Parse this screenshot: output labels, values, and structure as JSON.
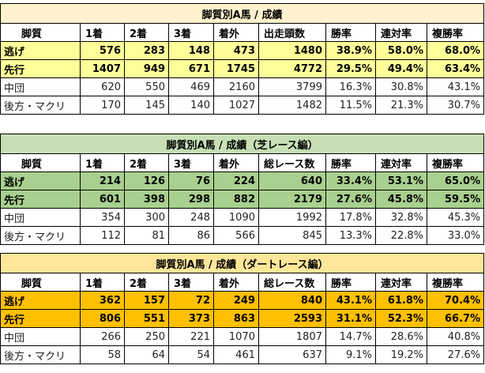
{
  "sections": [
    {
      "title": "脚質別A馬 / 成績",
      "title_bg": "#fff2cc",
      "hl_bg": "#ffff99",
      "headers": [
        "脚質",
        "1着",
        "2着",
        "3着",
        "着外",
        "出走頭数",
        "勝率",
        "連対率",
        "複勝率"
      ],
      "rows": [
        [
          "逃げ",
          "576",
          "283",
          "148",
          "473",
          "1480",
          "38.9%",
          "58.0%",
          "68.0%"
        ],
        [
          "先行",
          "1407",
          "949",
          "671",
          "1745",
          "4772",
          "29.5%",
          "49.4%",
          "63.4%"
        ],
        [
          "中団",
          "620",
          "550",
          "469",
          "2160",
          "3799",
          "16.3%",
          "30.8%",
          "43.1%"
        ],
        [
          "後方・マクリ",
          "170",
          "145",
          "140",
          "1027",
          "1482",
          "11.5%",
          "21.3%",
          "30.7%"
        ]
      ]
    },
    {
      "title": "脚質別A馬 / 成績（芝レース編）",
      "title_bg": "#c6e0b4",
      "hl_bg": "#a9d08e",
      "headers": [
        "脚質",
        "1着",
        "2着",
        "3着",
        "着外",
        "総レース数",
        "勝率",
        "連対率",
        "複勝率"
      ],
      "rows": [
        [
          "逃げ",
          "214",
          "126",
          "76",
          "224",
          "640",
          "33.4%",
          "53.1%",
          "65.0%"
        ],
        [
          "先行",
          "601",
          "398",
          "298",
          "882",
          "2179",
          "27.6%",
          "45.8%",
          "59.5%"
        ],
        [
          "中団",
          "354",
          "300",
          "248",
          "1090",
          "1992",
          "17.8%",
          "32.8%",
          "45.3%"
        ],
        [
          "後方・マクリ",
          "112",
          "81",
          "86",
          "566",
          "845",
          "13.3%",
          "22.8%",
          "33.0%"
        ]
      ]
    },
    {
      "title": "脚質別A馬 / 成績（ダートレース編）",
      "title_bg": "#ffe699",
      "hl_bg": "#ffc000",
      "headers": [
        "脚質",
        "1着",
        "2着",
        "3着",
        "着外",
        "総レース数",
        "勝率",
        "連対率",
        "複勝率"
      ],
      "rows": [
        [
          "逃げ",
          "362",
          "157",
          "72",
          "249",
          "840",
          "43.1%",
          "61.8%",
          "70.4%"
        ],
        [
          "先行",
          "806",
          "551",
          "373",
          "863",
          "2593",
          "31.1%",
          "52.3%",
          "66.7%"
        ],
        [
          "中団",
          "266",
          "250",
          "221",
          "1070",
          "1807",
          "14.7%",
          "28.6%",
          "40.8%"
        ],
        [
          "後方・マクリ",
          "58",
          "64",
          "54",
          "461",
          "637",
          "9.1%",
          "19.2%",
          "27.6%"
        ]
      ]
    }
  ]
}
